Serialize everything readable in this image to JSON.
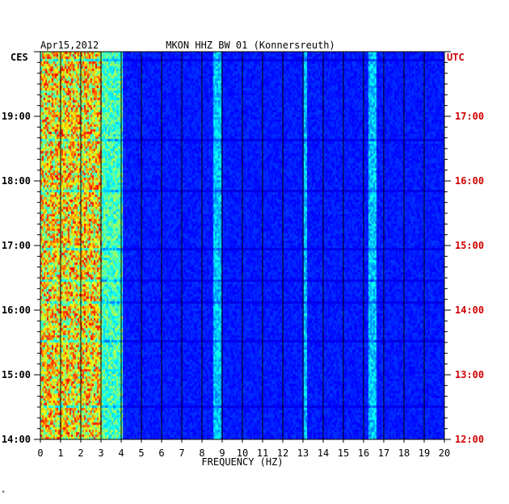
{
  "header": {
    "date": "Apr15,2012",
    "station": "MKON HHZ BW 01 (Konnersreuth)"
  },
  "corner_mark": "*",
  "colors": {
    "left_labels": "#000000",
    "right_labels": "#d00000",
    "background": "#00008c"
  },
  "chart_data": {
    "type": "heatmap",
    "title": "MKON HHZ BW 01 (Konnersreuth)",
    "subtitle": "Apr15,2012",
    "xlabel": "FREQUENCY (HZ)",
    "xlim": [
      0,
      20
    ],
    "x_ticks": [
      "0",
      "1",
      "2",
      "3",
      "4",
      "5",
      "6",
      "7",
      "8",
      "9",
      "10",
      "11",
      "12",
      "13",
      "14",
      "15",
      "16",
      "17",
      "18",
      "19",
      "20"
    ],
    "y_left_label": "CES",
    "y_left_ticks": [
      "19:00",
      "18:00",
      "17:00",
      "16:00",
      "15:00",
      "14:00"
    ],
    "y_left_tick_hours": [
      19,
      18,
      17,
      16,
      15,
      14
    ],
    "y_right_label": "UTC",
    "y_right_ticks": [
      "17:00",
      "16:00",
      "15:00",
      "14:00",
      "13:00",
      "12:00"
    ],
    "y_right_tick_hours": [
      17,
      16,
      15,
      14,
      13,
      12
    ],
    "time_range_ces": [
      14.0,
      20.0
    ],
    "grid": "vertical lines at each integer Hz",
    "energy_bands_hz": [
      {
        "from": 0,
        "to": 3.0,
        "level": "high"
      },
      {
        "from": 3.0,
        "to": 4.0,
        "level": "medium"
      },
      {
        "from": 8.5,
        "to": 8.9,
        "level": "low"
      },
      {
        "from": 13.0,
        "to": 13.2,
        "level": "low"
      },
      {
        "from": 16.2,
        "to": 16.6,
        "level": "low"
      }
    ]
  }
}
